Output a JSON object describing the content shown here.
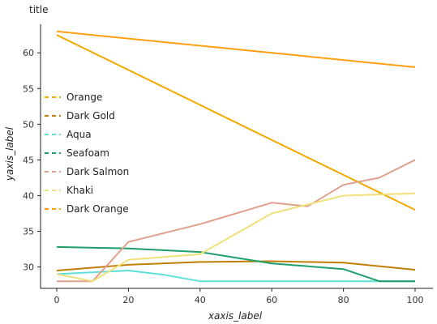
{
  "chart_data": {
    "type": "line",
    "title": "title",
    "xlabel": "xaxis_label",
    "ylabel": "yaxis_label",
    "xlim": [
      0,
      100
    ],
    "ylim": [
      27,
      64
    ],
    "x_ticks": [
      0,
      20,
      40,
      60,
      80,
      100
    ],
    "y_ticks": [
      30,
      35,
      40,
      45,
      50,
      55,
      60
    ],
    "grid": false,
    "legend_position": "left",
    "series": [
      {
        "name": "Orange",
        "color": "#f2a900",
        "points": [
          [
            0,
            62.5
          ],
          [
            100,
            38.0
          ]
        ]
      },
      {
        "name": "Dark Gold",
        "color": "#c07f09",
        "points": [
          [
            0,
            29.5
          ],
          [
            20,
            30.3
          ],
          [
            40,
            30.7
          ],
          [
            60,
            30.8
          ],
          [
            80,
            30.6
          ],
          [
            100,
            29.6
          ]
        ]
      },
      {
        "name": "Aqua",
        "color": "#5ee0d8",
        "points": [
          [
            0,
            29.0
          ],
          [
            20,
            29.5
          ],
          [
            30,
            28.9
          ],
          [
            40,
            28.0
          ],
          [
            60,
            28.0
          ],
          [
            80,
            28.0
          ],
          [
            100,
            28.0
          ]
        ]
      },
      {
        "name": "Seafoam",
        "color": "#1f9e6a",
        "points": [
          [
            0,
            32.8
          ],
          [
            20,
            32.6
          ],
          [
            40,
            32.1
          ],
          [
            60,
            30.5
          ],
          [
            80,
            29.7
          ],
          [
            90,
            28.0
          ],
          [
            100,
            28.0
          ]
        ]
      },
      {
        "name": "Dark Salmon",
        "color": "#e0a08c",
        "points": [
          [
            0,
            28.0
          ],
          [
            10,
            28.0
          ],
          [
            20,
            33.5
          ],
          [
            40,
            36.0
          ],
          [
            60,
            39.0
          ],
          [
            70,
            38.5
          ],
          [
            80,
            41.5
          ],
          [
            90,
            42.5
          ],
          [
            100,
            45.0
          ]
        ]
      },
      {
        "name": "Khaki",
        "color": "#f0e07a",
        "points": [
          [
            0,
            29.0
          ],
          [
            10,
            28.0
          ],
          [
            20,
            31.0
          ],
          [
            40,
            31.8
          ],
          [
            60,
            37.5
          ],
          [
            80,
            40.0
          ],
          [
            100,
            40.3
          ]
        ]
      },
      {
        "name": "Dark Orange",
        "color": "#ff9e10",
        "points": [
          [
            0,
            63.0
          ],
          [
            100,
            58.0
          ]
        ]
      }
    ]
  }
}
